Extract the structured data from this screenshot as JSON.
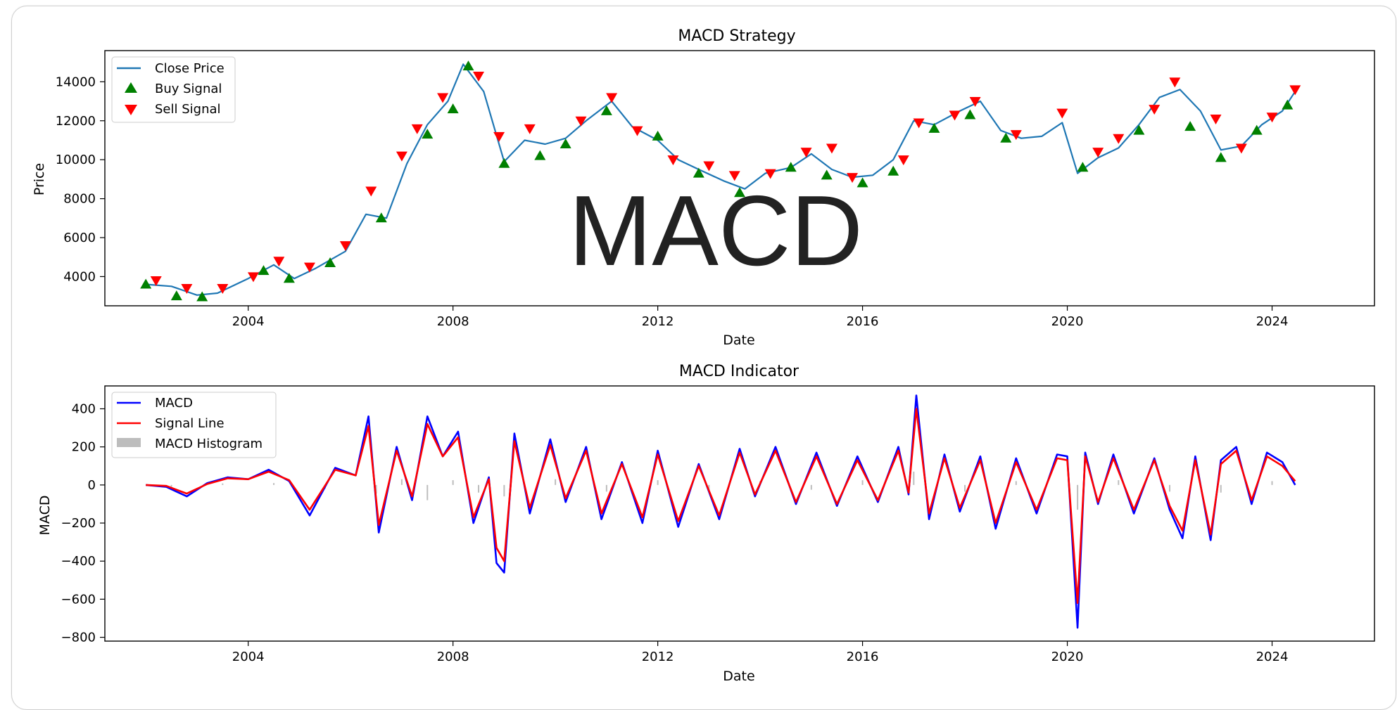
{
  "watermark": "MACD",
  "colors": {
    "close": "#1f77b4",
    "buy": "#008000",
    "sell": "#ff0000",
    "macd": "#0000ff",
    "signal": "#ff0000",
    "hist": "#bdbdbd"
  },
  "chart_data": [
    {
      "type": "line",
      "title": "MACD Strategy",
      "xlabel": "Date",
      "ylabel": "Price",
      "xlim": [
        2001.2,
        2026.0
      ],
      "ylim": [
        2500,
        15600
      ],
      "x_ticks": [
        "2004",
        "2008",
        "2012",
        "2016",
        "2020",
        "2024"
      ],
      "y_ticks": [
        "4000",
        "6000",
        "8000",
        "10000",
        "12000",
        "14000"
      ],
      "legend": [
        "Close Price",
        "Buy Signal",
        "Sell Signal"
      ],
      "legend_position": "upper-left",
      "series": [
        {
          "name": "Close Price",
          "x": [
            2002.0,
            2002.5,
            2003.0,
            2003.4,
            2004.0,
            2004.5,
            2004.9,
            2005.3,
            2005.9,
            2006.3,
            2006.7,
            2007.1,
            2007.5,
            2007.9,
            2008.2,
            2008.6,
            2009.0,
            2009.4,
            2009.8,
            2010.2,
            2010.6,
            2011.1,
            2011.5,
            2012.0,
            2012.4,
            2012.8,
            2013.3,
            2013.7,
            2014.1,
            2014.6,
            2015.0,
            2015.4,
            2015.8,
            2016.2,
            2016.6,
            2017.0,
            2017.4,
            2017.9,
            2018.3,
            2018.7,
            2019.1,
            2019.5,
            2019.9,
            2020.2,
            2020.6,
            2021.0,
            2021.4,
            2021.8,
            2022.2,
            2022.6,
            2023.0,
            2023.4,
            2023.8,
            2024.2,
            2024.45
          ],
          "values": [
            3600,
            3500,
            3050,
            3150,
            3900,
            4600,
            3900,
            4400,
            5300,
            7200,
            7000,
            9800,
            11800,
            13000,
            14900,
            13500,
            9900,
            11000,
            10800,
            11100,
            12000,
            13000,
            11700,
            11000,
            10000,
            9500,
            8900,
            8500,
            9300,
            9600,
            10300,
            9500,
            9100,
            9200,
            10000,
            12000,
            11800,
            12500,
            13000,
            11500,
            11100,
            11200,
            11900,
            9300,
            10100,
            10600,
            11800,
            13200,
            13600,
            12500,
            10500,
            10700,
            11800,
            12500,
            13500
          ]
        },
        {
          "name": "Buy Signal",
          "x": [
            2002.0,
            2002.6,
            2003.1,
            2004.3,
            2004.8,
            2005.6,
            2006.6,
            2007.5,
            2008.0,
            2008.3,
            2009.0,
            2009.7,
            2010.2,
            2011.0,
            2012.0,
            2012.8,
            2013.6,
            2014.6,
            2015.3,
            2016.0,
            2016.6,
            2017.4,
            2018.1,
            2018.8,
            2020.3,
            2021.4,
            2022.4,
            2023.0,
            2023.7,
            2024.3
          ],
          "values": [
            3600,
            3000,
            2950,
            4300,
            3900,
            4700,
            7000,
            11300,
            12600,
            14800,
            9800,
            10200,
            10800,
            12500,
            11200,
            9300,
            8300,
            9600,
            9200,
            8800,
            9400,
            11600,
            12300,
            11100,
            9600,
            11500,
            11700,
            10100,
            11500,
            12800
          ]
        },
        {
          "name": "Sell Signal",
          "x": [
            2002.2,
            2002.8,
            2003.5,
            2004.1,
            2004.6,
            2005.2,
            2005.9,
            2006.4,
            2007.0,
            2007.3,
            2007.8,
            2008.5,
            2008.9,
            2009.5,
            2010.5,
            2011.1,
            2011.6,
            2012.3,
            2013.0,
            2013.5,
            2014.2,
            2014.9,
            2015.4,
            2015.8,
            2016.8,
            2017.1,
            2017.8,
            2018.2,
            2019.0,
            2019.9,
            2020.6,
            2021.0,
            2021.7,
            2022.1,
            2022.9,
            2023.4,
            2024.0,
            2024.45
          ],
          "values": [
            3800,
            3400,
            3400,
            4000,
            4800,
            4500,
            5600,
            8400,
            10200,
            11600,
            13200,
            14300,
            11200,
            11600,
            12000,
            13200,
            11500,
            10000,
            9700,
            9200,
            9300,
            10400,
            10600,
            9100,
            10000,
            11900,
            12300,
            13000,
            11300,
            12400,
            10400,
            11100,
            12600,
            14000,
            12100,
            10600,
            12200,
            13600
          ]
        }
      ]
    },
    {
      "type": "line",
      "title": "MACD Indicator",
      "xlabel": "Date",
      "ylabel": "MACD",
      "xlim": [
        2001.2,
        2026.0
      ],
      "ylim": [
        -820,
        520
      ],
      "x_ticks": [
        "2004",
        "2008",
        "2012",
        "2016",
        "2020",
        "2024"
      ],
      "y_ticks": [
        "400",
        "200",
        "0",
        "−200",
        "−400",
        "−600",
        "−800"
      ],
      "legend": [
        "MACD",
        "Signal Line",
        "MACD Histogram"
      ],
      "legend_position": "upper-left",
      "series": [
        {
          "name": "MACD",
          "x": [
            2002.0,
            2002.4,
            2002.8,
            2003.2,
            2003.6,
            2004.0,
            2004.4,
            2004.8,
            2005.2,
            2005.7,
            2006.1,
            2006.35,
            2006.55,
            2006.9,
            2007.2,
            2007.5,
            2007.8,
            2008.1,
            2008.4,
            2008.7,
            2008.85,
            2009.0,
            2009.2,
            2009.5,
            2009.9,
            2010.2,
            2010.6,
            2010.9,
            2011.3,
            2011.7,
            2012.0,
            2012.4,
            2012.8,
            2013.2,
            2013.6,
            2013.9,
            2014.3,
            2014.7,
            2015.1,
            2015.5,
            2015.9,
            2016.3,
            2016.7,
            2016.9,
            2017.05,
            2017.3,
            2017.6,
            2017.9,
            2018.3,
            2018.6,
            2019.0,
            2019.4,
            2019.8,
            2020.0,
            2020.2,
            2020.35,
            2020.6,
            2020.9,
            2021.3,
            2021.7,
            2022.0,
            2022.25,
            2022.5,
            2022.8,
            2023.0,
            2023.3,
            2023.6,
            2023.9,
            2024.2,
            2024.45
          ],
          "values": [
            0,
            -10,
            -60,
            10,
            40,
            30,
            80,
            20,
            -160,
            90,
            50,
            360,
            -250,
            200,
            -80,
            360,
            150,
            280,
            -200,
            40,
            -410,
            -460,
            270,
            -150,
            240,
            -90,
            200,
            -180,
            120,
            -200,
            180,
            -220,
            110,
            -180,
            190,
            -60,
            200,
            -100,
            170,
            -110,
            150,
            -90,
            200,
            -50,
            470,
            -180,
            160,
            -140,
            150,
            -230,
            140,
            -150,
            160,
            150,
            -750,
            170,
            -100,
            160,
            -150,
            140,
            -130,
            -280,
            150,
            -290,
            130,
            200,
            -100,
            170,
            120,
            0
          ]
        },
        {
          "name": "Signal Line",
          "x": [
            2002.0,
            2002.4,
            2002.8,
            2003.2,
            2003.6,
            2004.0,
            2004.4,
            2004.8,
            2005.2,
            2005.7,
            2006.1,
            2006.35,
            2006.55,
            2006.9,
            2007.2,
            2007.5,
            2007.8,
            2008.1,
            2008.4,
            2008.7,
            2008.85,
            2009.0,
            2009.2,
            2009.5,
            2009.9,
            2010.2,
            2010.6,
            2010.9,
            2011.3,
            2011.7,
            2012.0,
            2012.4,
            2012.8,
            2013.2,
            2013.6,
            2013.9,
            2014.3,
            2014.7,
            2015.1,
            2015.5,
            2015.9,
            2016.3,
            2016.7,
            2016.9,
            2017.05,
            2017.3,
            2017.6,
            2017.9,
            2018.3,
            2018.6,
            2019.0,
            2019.4,
            2019.8,
            2020.0,
            2020.2,
            2020.35,
            2020.6,
            2020.9,
            2021.3,
            2021.7,
            2022.0,
            2022.25,
            2022.5,
            2022.8,
            2023.0,
            2023.3,
            2023.6,
            2023.9,
            2024.2,
            2024.45
          ],
          "values": [
            0,
            -5,
            -45,
            5,
            35,
            30,
            70,
            25,
            -130,
            80,
            50,
            310,
            -210,
            180,
            -60,
            320,
            150,
            250,
            -170,
            30,
            -330,
            -400,
            230,
            -120,
            210,
            -70,
            180,
            -150,
            110,
            -170,
            160,
            -190,
            100,
            -160,
            170,
            -50,
            180,
            -90,
            150,
            -100,
            130,
            -80,
            180,
            -40,
            400,
            -150,
            140,
            -120,
            130,
            -200,
            120,
            -130,
            140,
            130,
            -620,
            150,
            -90,
            140,
            -130,
            130,
            -110,
            -240,
            130,
            -260,
            110,
            180,
            -80,
            150,
            100,
            20
          ]
        },
        {
          "name": "MACD Histogram",
          "x": [
            2002.5,
            2003.5,
            2004.5,
            2005.5,
            2006.5,
            2007.0,
            2007.5,
            2008.0,
            2008.5,
            2009.0,
            2010.0,
            2011.0,
            2012.0,
            2013.0,
            2014.0,
            2015.0,
            2016.0,
            2017.0,
            2018.0,
            2019.0,
            2020.2,
            2021.0,
            2022.0,
            2023.0,
            2024.0
          ],
          "values": [
            -10,
            8,
            10,
            -20,
            -45,
            30,
            -80,
            25,
            -40,
            -60,
            30,
            -35,
            25,
            -30,
            20,
            -25,
            25,
            70,
            -35,
            20,
            -130,
            25,
            -35,
            -40,
            20
          ]
        }
      ]
    }
  ]
}
